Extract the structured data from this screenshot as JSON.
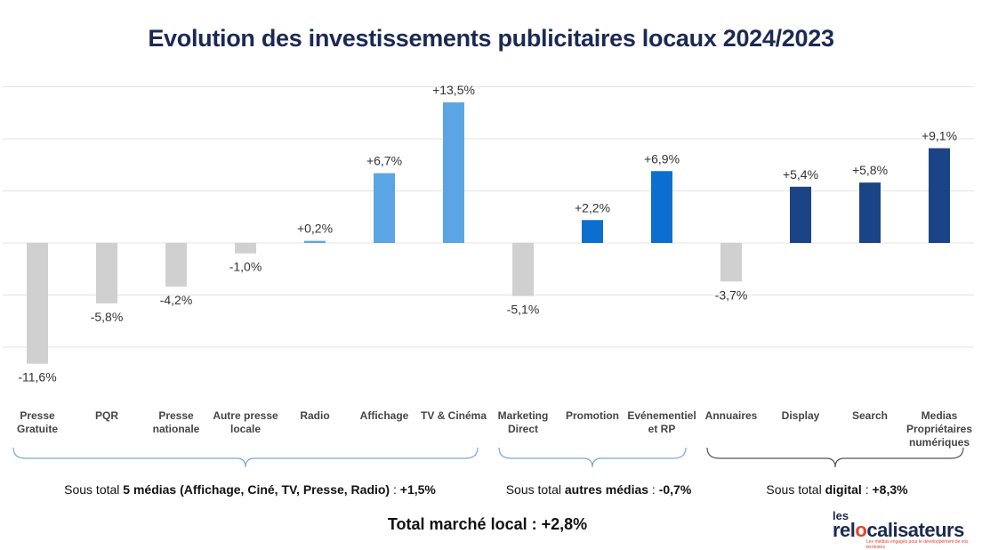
{
  "chart_data": {
    "type": "bar",
    "title": "Evolution des investissements publicitaires locaux 2024/2023",
    "categories": [
      "Presse Gratuite",
      "PQR",
      "Presse nationale",
      "Autre presse locale",
      "Radio",
      "Affichage",
      "TV & Cinéma",
      "Marketing Direct",
      "Promotion",
      "Evénementiel et RP",
      "Annuaires",
      "Display",
      "Search",
      "Medias Propriétaires numériques"
    ],
    "category_lines": [
      [
        "Presse",
        "Gratuite"
      ],
      [
        "PQR"
      ],
      [
        "Presse",
        "nationale"
      ],
      [
        "Autre presse",
        "locale"
      ],
      [
        "Radio"
      ],
      [
        "Affichage"
      ],
      [
        "TV & Cinéma"
      ],
      [
        "Marketing",
        "Direct"
      ],
      [
        "Promotion"
      ],
      [
        "Evénementiel",
        "et RP"
      ],
      [
        "Annuaires"
      ],
      [
        "Display"
      ],
      [
        "Search"
      ],
      [
        "Medias",
        "Propriétaires",
        "numériques"
      ]
    ],
    "values": [
      -11.6,
      -5.8,
      -4.2,
      -1.0,
      0.2,
      6.7,
      13.5,
      -5.1,
      2.2,
      6.9,
      -3.7,
      5.4,
      5.8,
      9.1
    ],
    "data_labels": [
      "-11,6%",
      "-5,8%",
      "-4,2%",
      "-1,0%",
      "+0,2%",
      "+6,7%",
      "+13,5%",
      "-5,1%",
      "+2,2%",
      "+6,9%",
      "-3,7%",
      "+5,4%",
      "+5,8%",
      "+9,1%"
    ],
    "colors": [
      "#d0d0d0",
      "#d0d0d0",
      "#d0d0d0",
      "#d0d0d0",
      "#5ca5e5",
      "#5ca5e5",
      "#5ca5e5",
      "#d0d0d0",
      "#0c6fd0",
      "#0c6fd0",
      "#d0d0d0",
      "#1b4486",
      "#1b4486",
      "#1b4486"
    ],
    "ylim": [
      -15,
      15
    ],
    "grid_step": 5,
    "grid": true,
    "gridline_color": "#e3e3e3",
    "brace_color": "#7aa7d6",
    "brace_color_digital": "#555555",
    "groups": [
      {
        "from": 0,
        "to": 6,
        "prefix": "Sous total ",
        "bold": "5 médias (Affichage, Ciné, TV, Presse, Radio)",
        "suffix": " : ",
        "value": "+1,5%"
      },
      {
        "from": 7,
        "to": 9,
        "prefix": "Sous total ",
        "bold": "autres médias",
        "suffix": " : ",
        "value": "-0,7%"
      },
      {
        "from": 10,
        "to": 13,
        "prefix": "Sous total ",
        "bold": "digital",
        "suffix": " : ",
        "value": "+8,3%"
      }
    ]
  },
  "total": "Total marché local : +2,8%",
  "logo": {
    "line1": "les",
    "line2_a": "rel",
    "line2_o": "o",
    "line2_b": "calisateurs",
    "tagline": "Les médias engagés pour le développement de vos territoires"
  }
}
